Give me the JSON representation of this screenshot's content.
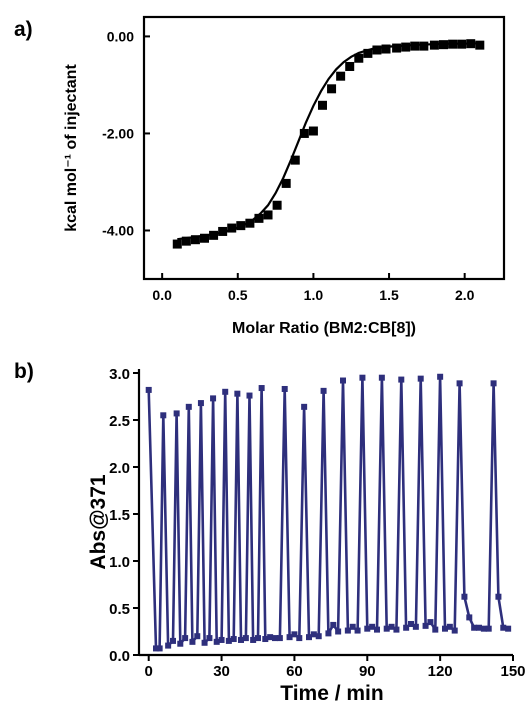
{
  "panels": [
    {
      "label": "a)"
    },
    {
      "label": "b)"
    }
  ],
  "chart_data": [
    {
      "type": "scatter",
      "xlabel": "Molar Ratio (BM2:CB[8])",
      "ylabel": "kcal mol⁻¹ of injectant",
      "xlim": [
        -0.12,
        2.26
      ],
      "ylim": [
        -5.0,
        0.4
      ],
      "x_ticks": [
        0.0,
        0.5,
        1.0,
        1.5,
        2.0
      ],
      "x_tick_labels": [
        "0.0",
        "0.5",
        "1.0",
        "1.5",
        "2.0"
      ],
      "y_ticks": [
        0,
        -2,
        -4
      ],
      "y_tick_labels": [
        "0.00",
        "-2.00",
        "-4.00"
      ],
      "colors": {
        "points": "#000000",
        "fit": "#000000"
      },
      "series": [
        {
          "marker": "square",
          "x": [
            0.1,
            0.16,
            0.22,
            0.28,
            0.34,
            0.4,
            0.46,
            0.52,
            0.58,
            0.64,
            0.7,
            0.76,
            0.82,
            0.88,
            0.94,
            1.0,
            1.06,
            1.12,
            1.18,
            1.24,
            1.3,
            1.36,
            1.42,
            1.48,
            1.55,
            1.61,
            1.67,
            1.73,
            1.8,
            1.86,
            1.92,
            1.98,
            2.04,
            2.1
          ],
          "y": [
            -4.28,
            -4.22,
            -4.19,
            -4.16,
            -4.1,
            -4.02,
            -3.95,
            -3.9,
            -3.85,
            -3.75,
            -3.68,
            -3.48,
            -3.03,
            -2.55,
            -2.0,
            -1.95,
            -1.42,
            -1.08,
            -0.82,
            -0.62,
            -0.45,
            -0.35,
            -0.28,
            -0.26,
            -0.24,
            -0.22,
            -0.2,
            -0.2,
            -0.18,
            -0.17,
            -0.16,
            -0.16,
            -0.15,
            -0.18
          ]
        },
        {
          "style": "line",
          "x": [
            0.1,
            0.2,
            0.3,
            0.4,
            0.5,
            0.55,
            0.6,
            0.65,
            0.7,
            0.75,
            0.8,
            0.85,
            0.9,
            0.95,
            1.0,
            1.05,
            1.1,
            1.15,
            1.2,
            1.25,
            1.3,
            1.35,
            1.4,
            1.5,
            1.6,
            1.7,
            1.8,
            1.9,
            2.0,
            2.12
          ],
          "y": [
            -4.18,
            -4.14,
            -4.1,
            -4.04,
            -3.94,
            -3.87,
            -3.78,
            -3.65,
            -3.48,
            -3.23,
            -2.92,
            -2.56,
            -2.17,
            -1.78,
            -1.43,
            -1.13,
            -0.88,
            -0.68,
            -0.53,
            -0.42,
            -0.34,
            -0.29,
            -0.25,
            -0.21,
            -0.19,
            -0.17,
            -0.16,
            -0.15,
            -0.15,
            -0.14
          ]
        }
      ]
    },
    {
      "type": "line",
      "xlabel": "Time / min",
      "ylabel": "Abs@371",
      "xlim": [
        -4,
        150
      ],
      "ylim": [
        0.0,
        3.0
      ],
      "x_ticks": [
        0,
        30,
        60,
        90,
        120,
        150
      ],
      "x_tick_labels": [
        "0",
        "30",
        "60",
        "90",
        "120",
        "150"
      ],
      "y_ticks": [
        0.0,
        0.5,
        1.0,
        1.5,
        2.0,
        2.5,
        3.0
      ],
      "y_tick_labels": [
        "0.0",
        "0.5",
        "1.0",
        "1.5",
        "2.0",
        "2.5",
        "3.0"
      ],
      "colors": {
        "line": "#2e2f7c"
      },
      "series": [
        {
          "marker": "small-square",
          "x": [
            0,
            3,
            4.5,
            6,
            8,
            10,
            11.5,
            13,
            15,
            16.5,
            18,
            20,
            21.5,
            23,
            25,
            26.5,
            28,
            30,
            31.5,
            33,
            35,
            36.5,
            38,
            40,
            41.5,
            43,
            45,
            46.5,
            48,
            50,
            52,
            54,
            56,
            58,
            60,
            62,
            64,
            66,
            68,
            70,
            72,
            74,
            76,
            78,
            80,
            82,
            84,
            86,
            88,
            90,
            92,
            94,
            96,
            98,
            100,
            102,
            104,
            106,
            108,
            110,
            112,
            114,
            116,
            118,
            120,
            122,
            124,
            126,
            128,
            130,
            132,
            134,
            136,
            138,
            140,
            142,
            144,
            146,
            148
          ],
          "y": [
            2.82,
            0.07,
            0.07,
            2.55,
            0.1,
            0.15,
            2.57,
            0.12,
            0.18,
            2.64,
            0.14,
            0.2,
            2.68,
            0.13,
            0.18,
            2.73,
            0.14,
            0.16,
            2.8,
            0.15,
            0.17,
            2.78,
            0.16,
            0.18,
            2.76,
            0.16,
            0.18,
            2.84,
            0.17,
            0.19,
            0.18,
            0.18,
            2.83,
            0.19,
            0.22,
            0.18,
            2.64,
            0.19,
            0.22,
            0.2,
            2.81,
            0.23,
            0.32,
            0.25,
            2.92,
            0.26,
            0.3,
            0.26,
            2.95,
            0.28,
            0.3,
            0.27,
            2.95,
            0.28,
            0.3,
            0.27,
            2.93,
            0.29,
            0.33,
            0.3,
            2.94,
            0.31,
            0.35,
            0.27,
            2.96,
            0.28,
            0.3,
            0.26,
            2.89,
            0.62,
            0.4,
            0.29,
            0.29,
            0.28,
            0.28,
            2.89,
            0.62,
            0.29,
            0.28
          ]
        }
      ]
    }
  ]
}
